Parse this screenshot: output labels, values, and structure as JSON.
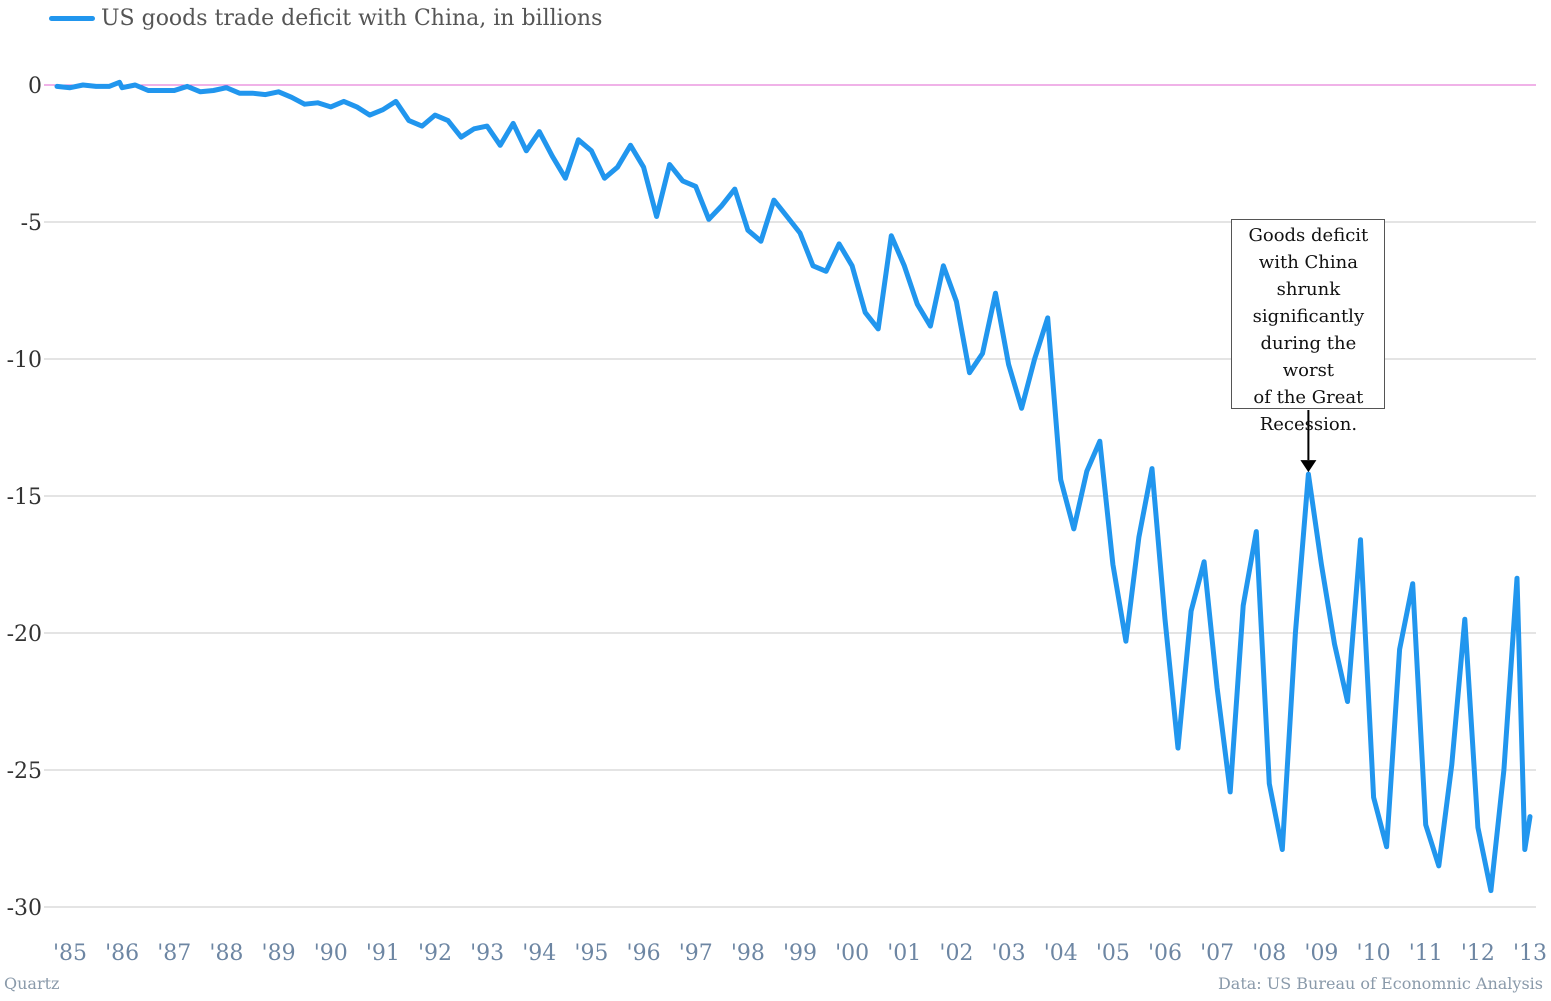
{
  "legend": {
    "label": "US goods trade deficit with China, in billions"
  },
  "footer": {
    "left": "Quartz",
    "right": "Data: US Bureau of Economnic Analysis"
  },
  "annotation": {
    "text": "Goods deficit\nwith China\nshrunk\nsignificantly\nduring the worst\nof the Great\nRecession.",
    "x": 2008.75,
    "y": -14.2
  },
  "colors": {
    "line": "#2196ee",
    "zero_line": "#e066d0",
    "grid": "#c8c8c8",
    "y_tick": "#333333",
    "x_tick": "#6d86a3"
  },
  "chart_data": {
    "type": "line",
    "ylim": [
      -30,
      0
    ],
    "xlim": [
      1985,
      2013
    ],
    "grid": true,
    "legend_position": "top-left",
    "y_ticks": [
      0,
      -5,
      -10,
      -15,
      -20,
      -25,
      -30
    ],
    "x_ticks": [
      {
        "x": 1985,
        "label": "'85"
      },
      {
        "x": 1986,
        "label": "'86"
      },
      {
        "x": 1987,
        "label": "'87"
      },
      {
        "x": 1988,
        "label": "'88"
      },
      {
        "x": 1989,
        "label": "'89"
      },
      {
        "x": 1990,
        "label": "'90"
      },
      {
        "x": 1991,
        "label": "'91"
      },
      {
        "x": 1992,
        "label": "'92"
      },
      {
        "x": 1993,
        "label": "'93"
      },
      {
        "x": 1994,
        "label": "'94"
      },
      {
        "x": 1995,
        "label": "'95"
      },
      {
        "x": 1996,
        "label": "'96"
      },
      {
        "x": 1997,
        "label": "'97"
      },
      {
        "x": 1998,
        "label": "'98"
      },
      {
        "x": 1999,
        "label": "'99"
      },
      {
        "x": 2000,
        "label": "'00"
      },
      {
        "x": 2001,
        "label": "'01"
      },
      {
        "x": 2002,
        "label": "'02"
      },
      {
        "x": 2003,
        "label": "'03"
      },
      {
        "x": 2004,
        "label": "'04"
      },
      {
        "x": 2005,
        "label": "'05"
      },
      {
        "x": 2006,
        "label": "'06"
      },
      {
        "x": 2007,
        "label": "'07"
      },
      {
        "x": 2008,
        "label": "'08"
      },
      {
        "x": 2009,
        "label": "'09"
      },
      {
        "x": 2010,
        "label": "'10"
      },
      {
        "x": 2011,
        "label": "'11"
      },
      {
        "x": 2012,
        "label": "'12"
      },
      {
        "x": 2013,
        "label": "'13"
      }
    ],
    "series": [
      {
        "name": "US goods trade deficit with China, in billions",
        "points": [
          [
            1984.75,
            -0.05
          ],
          [
            1985.0,
            -0.1
          ],
          [
            1985.25,
            0.0
          ],
          [
            1985.5,
            -0.05
          ],
          [
            1985.75,
            -0.05
          ],
          [
            1985.95,
            0.1
          ],
          [
            1986.0,
            -0.1
          ],
          [
            1986.25,
            0.0
          ],
          [
            1986.5,
            -0.2
          ],
          [
            1986.75,
            -0.2
          ],
          [
            1987.0,
            -0.2
          ],
          [
            1987.25,
            -0.05
          ],
          [
            1987.5,
            -0.25
          ],
          [
            1987.75,
            -0.2
          ],
          [
            1988.0,
            -0.1
          ],
          [
            1988.25,
            -0.3
          ],
          [
            1988.5,
            -0.3
          ],
          [
            1988.75,
            -0.35
          ],
          [
            1989.0,
            -0.25
          ],
          [
            1989.25,
            -0.45
          ],
          [
            1989.5,
            -0.7
          ],
          [
            1989.75,
            -0.65
          ],
          [
            1990.0,
            -0.8
          ],
          [
            1990.25,
            -0.6
          ],
          [
            1990.5,
            -0.8
          ],
          [
            1990.75,
            -1.1
          ],
          [
            1991.0,
            -0.9
          ],
          [
            1991.25,
            -0.6
          ],
          [
            1991.5,
            -1.3
          ],
          [
            1991.75,
            -1.5
          ],
          [
            1992.0,
            -1.1
          ],
          [
            1992.25,
            -1.3
          ],
          [
            1992.5,
            -1.9
          ],
          [
            1992.75,
            -1.6
          ],
          [
            1993.0,
            -1.5
          ],
          [
            1993.25,
            -2.2
          ],
          [
            1993.5,
            -1.4
          ],
          [
            1993.75,
            -2.4
          ],
          [
            1994.0,
            -1.7
          ],
          [
            1994.25,
            -2.6
          ],
          [
            1994.5,
            -3.4
          ],
          [
            1994.75,
            -2.0
          ],
          [
            1995.0,
            -2.4
          ],
          [
            1995.25,
            -3.4
          ],
          [
            1995.5,
            -3.0
          ],
          [
            1995.75,
            -2.2
          ],
          [
            1996.0,
            -3.0
          ],
          [
            1996.25,
            -4.8
          ],
          [
            1996.5,
            -2.9
          ],
          [
            1996.75,
            -3.5
          ],
          [
            1997.0,
            -3.7
          ],
          [
            1997.25,
            -4.9
          ],
          [
            1997.5,
            -4.4
          ],
          [
            1997.75,
            -3.8
          ],
          [
            1998.0,
            -5.3
          ],
          [
            1998.25,
            -5.7
          ],
          [
            1998.5,
            -4.2
          ],
          [
            1998.75,
            -4.8
          ],
          [
            1999.0,
            -5.4
          ],
          [
            1999.25,
            -6.6
          ],
          [
            1999.5,
            -6.8
          ],
          [
            1999.75,
            -5.8
          ],
          [
            2000.0,
            -6.6
          ],
          [
            2000.25,
            -8.3
          ],
          [
            2000.5,
            -8.9
          ],
          [
            2000.75,
            -5.5
          ],
          [
            2001.0,
            -6.6
          ],
          [
            2001.25,
            -8.0
          ],
          [
            2001.5,
            -8.8
          ],
          [
            2001.75,
            -6.6
          ],
          [
            2002.0,
            -7.9
          ],
          [
            2002.25,
            -10.5
          ],
          [
            2002.5,
            -9.8
          ],
          [
            2002.75,
            -7.6
          ],
          [
            2003.0,
            -10.2
          ],
          [
            2003.25,
            -11.8
          ],
          [
            2003.5,
            -10.0
          ],
          [
            2003.75,
            -8.5
          ],
          [
            2004.0,
            -14.4
          ],
          [
            2004.25,
            -16.2
          ],
          [
            2004.5,
            -14.1
          ],
          [
            2004.75,
            -13.0
          ],
          [
            2005.0,
            -17.5
          ],
          [
            2005.25,
            -20.3
          ],
          [
            2005.5,
            -16.5
          ],
          [
            2005.75,
            -14.0
          ],
          [
            2006.0,
            -19.5
          ],
          [
            2006.25,
            -24.2
          ],
          [
            2006.5,
            -19.2
          ],
          [
            2006.75,
            -17.4
          ],
          [
            2007.0,
            -22.0
          ],
          [
            2007.25,
            -25.8
          ],
          [
            2007.5,
            -19.0
          ],
          [
            2007.75,
            -16.3
          ],
          [
            2008.0,
            -25.5
          ],
          [
            2008.25,
            -27.9
          ],
          [
            2008.5,
            -20.0
          ],
          [
            2008.75,
            -14.2
          ],
          [
            2009.0,
            -17.5
          ],
          [
            2009.25,
            -20.4
          ],
          [
            2009.5,
            -22.5
          ],
          [
            2009.75,
            -16.6
          ],
          [
            2010.0,
            -26.0
          ],
          [
            2010.25,
            -27.8
          ],
          [
            2010.5,
            -20.6
          ],
          [
            2010.75,
            -18.2
          ],
          [
            2011.0,
            -27.0
          ],
          [
            2011.25,
            -28.5
          ],
          [
            2011.5,
            -24.8
          ],
          [
            2011.75,
            -19.5
          ],
          [
            2012.0,
            -27.1
          ],
          [
            2012.25,
            -29.4
          ],
          [
            2012.5,
            -25.0
          ],
          [
            2012.75,
            -18.0
          ],
          [
            2012.9,
            -27.9
          ],
          [
            2013.0,
            -26.7
          ]
        ]
      }
    ]
  }
}
